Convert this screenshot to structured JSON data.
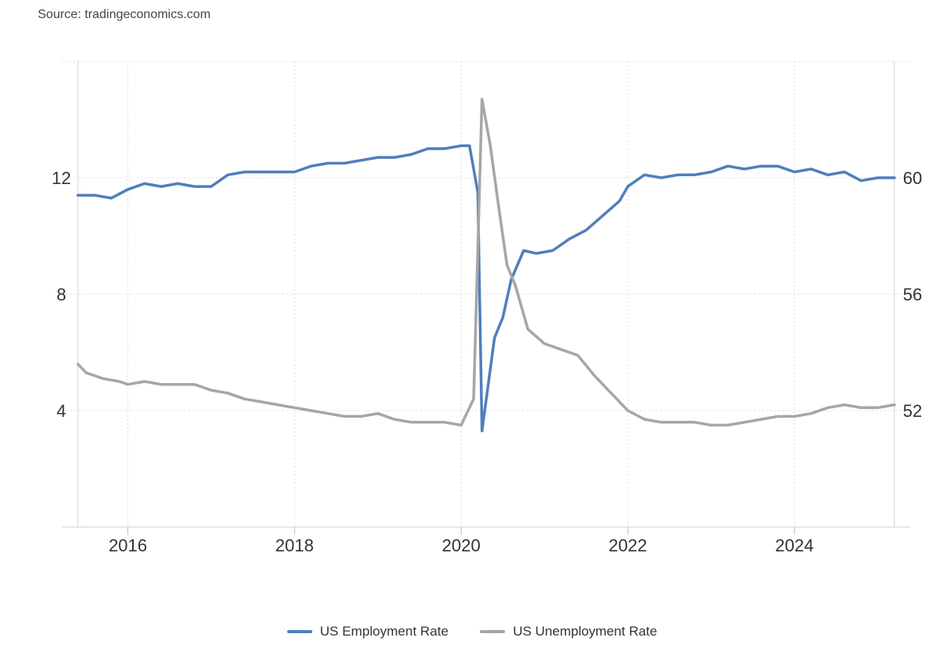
{
  "source": "Source: tradingeconomics.com",
  "chart_data": {
    "type": "line",
    "title": "",
    "xlim": [
      2015.4,
      2025.2
    ],
    "x_ticks": [
      2016,
      2018,
      2020,
      2022,
      2024
    ],
    "left_axis": {
      "ylim": [
        0,
        16
      ],
      "ticks": [
        4,
        8,
        12
      ]
    },
    "right_axis": {
      "ylim": [
        48,
        64
      ],
      "ticks": [
        52,
        56,
        60
      ]
    },
    "grid": true,
    "legend_position": "bottom-center",
    "series": [
      {
        "name": "US Employment Rate",
        "axis": "right",
        "color": "#4f7fbb",
        "points": [
          [
            2015.4,
            59.4
          ],
          [
            2015.6,
            59.4
          ],
          [
            2015.8,
            59.3
          ],
          [
            2016.0,
            59.6
          ],
          [
            2016.2,
            59.8
          ],
          [
            2016.4,
            59.7
          ],
          [
            2016.6,
            59.8
          ],
          [
            2016.8,
            59.7
          ],
          [
            2017.0,
            59.7
          ],
          [
            2017.2,
            60.1
          ],
          [
            2017.4,
            60.2
          ],
          [
            2017.6,
            60.2
          ],
          [
            2017.8,
            60.2
          ],
          [
            2018.0,
            60.2
          ],
          [
            2018.2,
            60.4
          ],
          [
            2018.4,
            60.5
          ],
          [
            2018.6,
            60.5
          ],
          [
            2018.8,
            60.6
          ],
          [
            2019.0,
            60.7
          ],
          [
            2019.2,
            60.7
          ],
          [
            2019.4,
            60.8
          ],
          [
            2019.6,
            61.0
          ],
          [
            2019.8,
            61.0
          ],
          [
            2020.0,
            61.1
          ],
          [
            2020.1,
            61.1
          ],
          [
            2020.2,
            59.5
          ],
          [
            2020.25,
            51.3
          ],
          [
            2020.4,
            54.5
          ],
          [
            2020.5,
            55.2
          ],
          [
            2020.6,
            56.5
          ],
          [
            2020.75,
            57.5
          ],
          [
            2020.9,
            57.4
          ],
          [
            2021.1,
            57.5
          ],
          [
            2021.3,
            57.9
          ],
          [
            2021.5,
            58.2
          ],
          [
            2021.7,
            58.7
          ],
          [
            2021.9,
            59.2
          ],
          [
            2022.0,
            59.7
          ],
          [
            2022.2,
            60.1
          ],
          [
            2022.4,
            60.0
          ],
          [
            2022.6,
            60.1
          ],
          [
            2022.8,
            60.1
          ],
          [
            2023.0,
            60.2
          ],
          [
            2023.2,
            60.4
          ],
          [
            2023.4,
            60.3
          ],
          [
            2023.6,
            60.4
          ],
          [
            2023.8,
            60.4
          ],
          [
            2024.0,
            60.2
          ],
          [
            2024.2,
            60.3
          ],
          [
            2024.4,
            60.1
          ],
          [
            2024.6,
            60.2
          ],
          [
            2024.8,
            59.9
          ],
          [
            2025.0,
            60.0
          ],
          [
            2025.2,
            60.0
          ]
        ]
      },
      {
        "name": "US Unemployment Rate",
        "axis": "left",
        "color": "#a6a6a6",
        "points": [
          [
            2015.4,
            5.6
          ],
          [
            2015.5,
            5.3
          ],
          [
            2015.7,
            5.1
          ],
          [
            2015.9,
            5.0
          ],
          [
            2016.0,
            4.9
          ],
          [
            2016.2,
            5.0
          ],
          [
            2016.4,
            4.9
          ],
          [
            2016.6,
            4.9
          ],
          [
            2016.8,
            4.9
          ],
          [
            2017.0,
            4.7
          ],
          [
            2017.2,
            4.6
          ],
          [
            2017.4,
            4.4
          ],
          [
            2017.6,
            4.3
          ],
          [
            2017.8,
            4.2
          ],
          [
            2018.0,
            4.1
          ],
          [
            2018.2,
            4.0
          ],
          [
            2018.4,
            3.9
          ],
          [
            2018.6,
            3.8
          ],
          [
            2018.8,
            3.8
          ],
          [
            2019.0,
            3.9
          ],
          [
            2019.2,
            3.7
          ],
          [
            2019.4,
            3.6
          ],
          [
            2019.6,
            3.6
          ],
          [
            2019.8,
            3.6
          ],
          [
            2020.0,
            3.5
          ],
          [
            2020.15,
            4.4
          ],
          [
            2020.25,
            14.7
          ],
          [
            2020.35,
            13.1
          ],
          [
            2020.45,
            11.0
          ],
          [
            2020.55,
            9.0
          ],
          [
            2020.65,
            8.3
          ],
          [
            2020.8,
            6.8
          ],
          [
            2021.0,
            6.3
          ],
          [
            2021.2,
            6.1
          ],
          [
            2021.4,
            5.9
          ],
          [
            2021.6,
            5.2
          ],
          [
            2021.8,
            4.6
          ],
          [
            2022.0,
            4.0
          ],
          [
            2022.2,
            3.7
          ],
          [
            2022.4,
            3.6
          ],
          [
            2022.6,
            3.6
          ],
          [
            2022.8,
            3.6
          ],
          [
            2023.0,
            3.5
          ],
          [
            2023.2,
            3.5
          ],
          [
            2023.4,
            3.6
          ],
          [
            2023.6,
            3.7
          ],
          [
            2023.8,
            3.8
          ],
          [
            2024.0,
            3.8
          ],
          [
            2024.2,
            3.9
          ],
          [
            2024.4,
            4.1
          ],
          [
            2024.6,
            4.2
          ],
          [
            2024.8,
            4.1
          ],
          [
            2025.0,
            4.1
          ],
          [
            2025.2,
            4.2
          ]
        ]
      }
    ]
  }
}
